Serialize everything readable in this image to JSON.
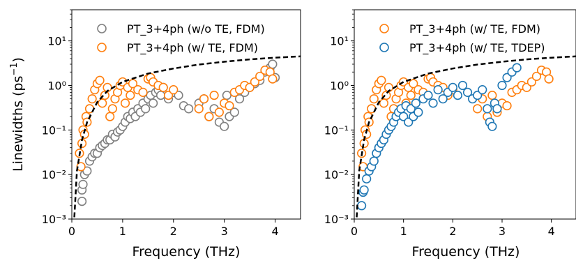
{
  "figure": {
    "ylabel_main": "Linewidths (ps",
    "ylabel_sup": "−1",
    "ylabel_close": ")"
  },
  "colors": {
    "gray": "#808080",
    "orange": "#ff7f0e",
    "blue": "#1f77b4",
    "curve": "#000000"
  },
  "chart_data": [
    {
      "type": "scatter",
      "title": "",
      "xlabel": "Frequency (THz)",
      "ylabel": "Linewidths (ps⁻¹)",
      "xlim": [
        0,
        4.5
      ],
      "ylim": [
        0.001,
        50
      ],
      "yscale": "log",
      "xticks": [
        "0",
        "1",
        "2",
        "3",
        "4"
      ],
      "yticks": [
        "10⁻³",
        "10⁻²",
        "10⁻¹",
        "10⁰",
        "10¹"
      ],
      "legend_position": "top-right",
      "series": [
        {
          "name": "PT_3+4ph (w/o TE, FDM)",
          "color": "gray",
          "x": [
            0.2,
            0.2,
            0.22,
            0.25,
            0.3,
            0.35,
            0.4,
            0.45,
            0.5,
            0.55,
            0.6,
            0.65,
            0.7,
            0.75,
            0.8,
            0.85,
            0.9,
            0.95,
            1.0,
            1.05,
            1.1,
            1.15,
            1.2,
            1.25,
            1.3,
            1.35,
            1.4,
            1.45,
            1.5,
            1.55,
            1.6,
            1.65,
            1.7,
            1.75,
            1.8,
            1.9,
            2.0,
            2.1,
            2.2,
            2.3,
            2.5,
            2.6,
            2.7,
            2.8,
            2.9,
            3.0,
            3.05,
            3.1,
            3.2,
            3.3,
            3.4,
            3.5,
            3.6,
            3.7,
            3.8,
            3.9,
            3.95,
            4.0
          ],
          "y": [
            0.0025,
            0.0045,
            0.006,
            0.01,
            0.012,
            0.02,
            0.025,
            0.03,
            0.03,
            0.04,
            0.045,
            0.05,
            0.06,
            0.06,
            0.08,
            0.07,
            0.09,
            0.1,
            0.12,
            0.15,
            0.2,
            0.18,
            0.25,
            0.2,
            0.3,
            0.25,
            0.4,
            0.3,
            0.5,
            0.6,
            0.4,
            0.7,
            0.8,
            0.6,
            0.9,
            0.5,
            0.7,
            0.6,
            0.35,
            0.3,
            0.4,
            0.5,
            0.2,
            0.3,
            0.15,
            0.12,
            0.6,
            0.2,
            0.25,
            0.5,
            0.7,
            0.9,
            1.1,
            1.3,
            2.0,
            2.5,
            3.0,
            1.5
          ]
        },
        {
          "name": "PT_3+4ph (w/ TE, FDM)",
          "color": "orange",
          "x": [
            0.15,
            0.18,
            0.2,
            0.22,
            0.25,
            0.28,
            0.3,
            0.35,
            0.4,
            0.45,
            0.5,
            0.55,
            0.6,
            0.65,
            0.7,
            0.75,
            0.8,
            0.85,
            0.9,
            0.95,
            1.0,
            1.05,
            1.1,
            1.15,
            1.2,
            1.3,
            1.4,
            1.5,
            1.55,
            1.6,
            1.7,
            1.8,
            1.9,
            2.0,
            2.5,
            2.6,
            2.7,
            2.8,
            2.9,
            3.0,
            3.1,
            3.2,
            3.3,
            3.4,
            3.5,
            3.6,
            3.7,
            3.8,
            3.9,
            3.95
          ],
          "y": [
            0.03,
            0.015,
            0.05,
            0.1,
            0.08,
            0.2,
            0.15,
            0.3,
            0.5,
            0.8,
            1.1,
            1.3,
            0.4,
            0.6,
            0.9,
            0.2,
            0.3,
            0.5,
            0.7,
            1.0,
            1.2,
            0.4,
            0.9,
            0.6,
            1.1,
            0.8,
            0.7,
            1.4,
            1.5,
            1.2,
            1.0,
            0.9,
            0.6,
            0.8,
            0.3,
            0.5,
            0.2,
            0.6,
            0.25,
            0.4,
            0.35,
            0.7,
            0.8,
            1.0,
            0.9,
            1.2,
            1.6,
            2.2,
            2.0,
            1.4
          ]
        }
      ],
      "curve": {
        "x": [
          0.05,
          0.1,
          0.2,
          0.3,
          0.5,
          0.7,
          1.0,
          1.5,
          2.0,
          2.5,
          3.0,
          3.5,
          4.0,
          4.5
        ],
        "y": [
          0.0011,
          0.012,
          0.06,
          0.15,
          0.42,
          0.75,
          1.2,
          1.85,
          2.4,
          2.95,
          3.4,
          3.85,
          4.2,
          4.5
        ]
      }
    },
    {
      "type": "scatter",
      "title": "",
      "xlabel": "Frequency (THz)",
      "ylabel": "",
      "xlim": [
        0,
        4.5
      ],
      "ylim": [
        0.001,
        50
      ],
      "yscale": "log",
      "xticks": [
        "0",
        "1",
        "2",
        "3",
        "4"
      ],
      "yticks": [
        "10⁻³",
        "10⁻²",
        "10⁻¹",
        "10⁰",
        "10¹"
      ],
      "legend_position": "top-right",
      "series": [
        {
          "name": "PT_3+4ph (w/ TE, FDM)",
          "color": "orange",
          "x": [
            0.15,
            0.18,
            0.2,
            0.22,
            0.25,
            0.28,
            0.3,
            0.35,
            0.4,
            0.45,
            0.5,
            0.55,
            0.6,
            0.65,
            0.7,
            0.75,
            0.8,
            0.85,
            0.9,
            0.95,
            1.0,
            1.05,
            1.1,
            1.15,
            1.2,
            1.3,
            1.4,
            1.5,
            1.55,
            1.6,
            1.7,
            1.8,
            1.9,
            2.0,
            2.5,
            2.6,
            2.7,
            2.8,
            2.9,
            3.0,
            3.1,
            3.2,
            3.3,
            3.4,
            3.5,
            3.6,
            3.7,
            3.8,
            3.9,
            3.95
          ],
          "y": [
            0.03,
            0.015,
            0.05,
            0.1,
            0.08,
            0.2,
            0.15,
            0.3,
            0.5,
            0.8,
            1.1,
            1.3,
            0.4,
            0.6,
            0.9,
            0.2,
            0.3,
            0.5,
            0.7,
            1.0,
            1.2,
            0.4,
            0.9,
            0.6,
            1.1,
            0.8,
            0.7,
            1.4,
            1.5,
            1.2,
            1.0,
            0.9,
            0.6,
            0.8,
            0.3,
            0.5,
            0.2,
            0.6,
            0.25,
            0.4,
            0.35,
            0.7,
            0.8,
            1.0,
            0.9,
            1.2,
            1.6,
            2.2,
            2.0,
            1.4
          ]
        },
        {
          "name": "PT_3+4ph (w/ TE, TDEP)",
          "color": "blue",
          "x": [
            0.15,
            0.18,
            0.2,
            0.25,
            0.3,
            0.35,
            0.4,
            0.45,
            0.5,
            0.55,
            0.6,
            0.65,
            0.7,
            0.75,
            0.8,
            0.85,
            0.9,
            0.95,
            1.0,
            1.05,
            1.1,
            1.15,
            1.2,
            1.25,
            1.3,
            1.4,
            1.5,
            1.6,
            1.7,
            1.8,
            1.9,
            2.0,
            2.1,
            2.2,
            2.3,
            2.4,
            2.5,
            2.6,
            2.7,
            2.75,
            2.8,
            2.85,
            2.9,
            3.0,
            3.1,
            3.2,
            3.3
          ],
          "y": [
            0.002,
            0.004,
            0.0045,
            0.008,
            0.012,
            0.015,
            0.02,
            0.03,
            0.04,
            0.05,
            0.06,
            0.08,
            0.1,
            0.12,
            0.15,
            0.2,
            0.25,
            0.3,
            0.2,
            0.35,
            0.15,
            0.3,
            0.2,
            0.4,
            0.25,
            0.5,
            0.6,
            0.4,
            0.8,
            0.5,
            0.7,
            0.9,
            0.6,
            1.0,
            0.7,
            0.5,
            0.6,
            0.8,
            0.3,
            0.15,
            0.12,
            0.4,
            0.3,
            1.0,
            1.5,
            2.0,
            2.5
          ]
        }
      ],
      "curve": {
        "x": [
          0.05,
          0.1,
          0.2,
          0.3,
          0.5,
          0.7,
          1.0,
          1.5,
          2.0,
          2.5,
          3.0,
          3.5,
          4.0,
          4.5
        ],
        "y": [
          0.0011,
          0.012,
          0.06,
          0.15,
          0.42,
          0.75,
          1.2,
          1.85,
          2.4,
          2.95,
          3.4,
          3.85,
          4.2,
          4.5
        ]
      }
    }
  ]
}
